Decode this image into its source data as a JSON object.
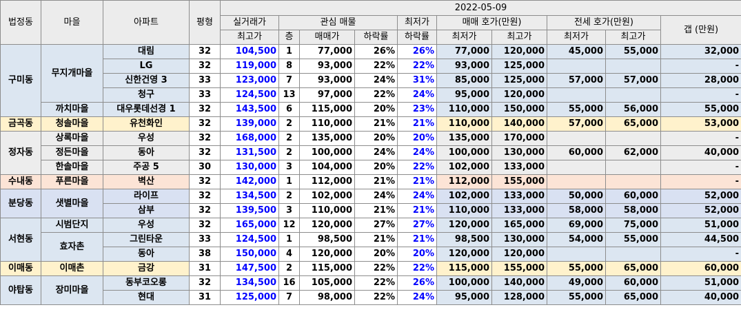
{
  "header": {
    "date": "2022-05-09",
    "dong": "법정동",
    "village": "마을",
    "apt": "아파트",
    "size": "평형",
    "trade_top": "실거래가",
    "trade_sub": "최고가",
    "interest": "관심 매물",
    "floor": "층",
    "price": "매매가",
    "drop": "하락률",
    "lowest_top": "최저가",
    "lowest_sub": "하락률",
    "sale_quote": "매매 호가(만원)",
    "jeonse_quote": "전세 호가(만원)",
    "min": "최저가",
    "max": "최고가",
    "gap": "갭 (만원)"
  },
  "colors": {
    "blue_bg": "#dce6f1",
    "yellow_bg": "#fff2cc",
    "gray_bg": "#ededed",
    "peach_bg": "#fce4d6",
    "lavender_bg": "#d9e1f2",
    "header_bg": "#ececec",
    "trade_text": "#0000ff"
  },
  "rows": [
    {
      "dong": "구미동",
      "village": "무지개마을",
      "apt": "대림",
      "size": "32",
      "trade": "104,500",
      "floor": "1",
      "price": "77,000",
      "drop": "26%",
      "low_drop": "26%",
      "sale_min": "77,000",
      "sale_max": "120,000",
      "j_min": "45,000",
      "j_max": "55,000",
      "gap": "32,000"
    },
    {
      "apt": "LG",
      "size": "32",
      "trade": "119,000",
      "floor": "8",
      "price": "93,000",
      "drop": "22%",
      "low_drop": "22%",
      "sale_min": "93,000",
      "sale_max": "125,000",
      "j_min": "",
      "j_max": "",
      "gap": "-"
    },
    {
      "apt": "신한건영 3",
      "size": "33",
      "trade": "123,000",
      "floor": "7",
      "price": "93,000",
      "drop": "24%",
      "low_drop": "31%",
      "sale_min": "85,000",
      "sale_max": "125,000",
      "j_min": "57,000",
      "j_max": "57,000",
      "gap": "28,000"
    },
    {
      "apt": "청구",
      "size": "33",
      "trade": "124,500",
      "floor": "13",
      "price": "97,000",
      "drop": "22%",
      "low_drop": "24%",
      "sale_min": "95,000",
      "sale_max": "120,000",
      "j_min": "",
      "j_max": "",
      "gap": "-"
    },
    {
      "village": "까치마을",
      "apt": "대우롯데선경 1",
      "size": "32",
      "trade": "143,500",
      "floor": "6",
      "price": "115,000",
      "drop": "20%",
      "low_drop": "23%",
      "sale_min": "110,000",
      "sale_max": "150,000",
      "j_min": "55,000",
      "j_max": "56,000",
      "gap": "55,000"
    },
    {
      "dong": "금곡동",
      "village": "청솔마을",
      "apt": "유천화인",
      "size": "32",
      "trade": "139,000",
      "floor": "2",
      "price": "110,000",
      "drop": "21%",
      "low_drop": "21%",
      "sale_min": "110,000",
      "sale_max": "140,000",
      "j_min": "57,000",
      "j_max": "65,000",
      "gap": "53,000"
    },
    {
      "dong": "정자동",
      "village": "상록마을",
      "apt": "우성",
      "size": "32",
      "trade": "168,000",
      "floor": "2",
      "price": "135,000",
      "drop": "20%",
      "low_drop": "20%",
      "sale_min": "135,000",
      "sale_max": "170,000",
      "j_min": "",
      "j_max": "",
      "gap": "-"
    },
    {
      "village": "정든마을",
      "apt": "동아",
      "size": "32",
      "trade": "131,500",
      "floor": "2",
      "price": "100,000",
      "drop": "24%",
      "low_drop": "24%",
      "sale_min": "100,000",
      "sale_max": "130,000",
      "j_min": "60,000",
      "j_max": "62,000",
      "gap": "40,000"
    },
    {
      "village": "한솔마을",
      "apt": "주공 5",
      "size": "30",
      "trade": "130,000",
      "floor": "3",
      "price": "104,000",
      "drop": "20%",
      "low_drop": "22%",
      "sale_min": "102,000",
      "sale_max": "133,000",
      "j_min": "",
      "j_max": "",
      "gap": "-"
    },
    {
      "dong": "수내동",
      "village": "푸른마을",
      "apt": "벽산",
      "size": "32",
      "trade": "142,000",
      "floor": "1",
      "price": "112,000",
      "drop": "21%",
      "low_drop": "21%",
      "sale_min": "112,000",
      "sale_max": "155,000",
      "j_min": "",
      "j_max": "",
      "gap": "-"
    },
    {
      "dong": "분당동",
      "village": "샛별마을",
      "apt": "라이프",
      "size": "32",
      "trade": "134,500",
      "floor": "2",
      "price": "102,000",
      "drop": "24%",
      "low_drop": "24%",
      "sale_min": "102,000",
      "sale_max": "133,000",
      "j_min": "50,000",
      "j_max": "60,000",
      "gap": "52,000"
    },
    {
      "apt": "삼부",
      "size": "32",
      "trade": "139,500",
      "floor": "3",
      "price": "110,000",
      "drop": "21%",
      "low_drop": "21%",
      "sale_min": "110,000",
      "sale_max": "133,000",
      "j_min": "58,000",
      "j_max": "58,000",
      "gap": "52,000"
    },
    {
      "dong": "서현동",
      "village": "시범단지",
      "apt": "우성",
      "size": "32",
      "trade": "165,000",
      "floor": "12",
      "price": "120,000",
      "drop": "27%",
      "low_drop": "27%",
      "sale_min": "120,000",
      "sale_max": "165,000",
      "j_min": "69,000",
      "j_max": "75,000",
      "gap": "51,000"
    },
    {
      "village": "효자촌",
      "apt": "그린타운",
      "size": "33",
      "trade": "124,500",
      "floor": "1",
      "price": "98,500",
      "drop": "21%",
      "low_drop": "21%",
      "sale_min": "98,500",
      "sale_max": "130,000",
      "j_min": "54,000",
      "j_max": "55,000",
      "gap": "44,500"
    },
    {
      "apt": "동아",
      "size": "38",
      "trade": "150,000",
      "floor": "4",
      "price": "120,000",
      "drop": "20%",
      "low_drop": "20%",
      "sale_min": "120,000",
      "sale_max": "120,000",
      "j_min": "",
      "j_max": "",
      "gap": "-"
    },
    {
      "dong": "이매동",
      "village": "이매촌",
      "apt": "금강",
      "size": "31",
      "trade": "147,500",
      "floor": "2",
      "price": "115,000",
      "drop": "22%",
      "low_drop": "22%",
      "sale_min": "115,000",
      "sale_max": "155,000",
      "j_min": "55,000",
      "j_max": "65,000",
      "gap": "60,000"
    },
    {
      "dong": "야탑동",
      "village": "장미마을",
      "apt": "동부코오롱",
      "size": "32",
      "trade": "134,500",
      "floor": "16",
      "price": "105,000",
      "drop": "22%",
      "low_drop": "26%",
      "sale_min": "100,000",
      "sale_max": "140,000",
      "j_min": "49,000",
      "j_max": "60,000",
      "gap": "51,000"
    },
    {
      "apt": "현대",
      "size": "31",
      "trade": "125,000",
      "floor": "7",
      "price": "98,000",
      "drop": "22%",
      "low_drop": "24%",
      "sale_min": "95,000",
      "sale_max": "128,000",
      "j_min": "55,000",
      "j_max": "65,000",
      "gap": "40,000"
    }
  ]
}
